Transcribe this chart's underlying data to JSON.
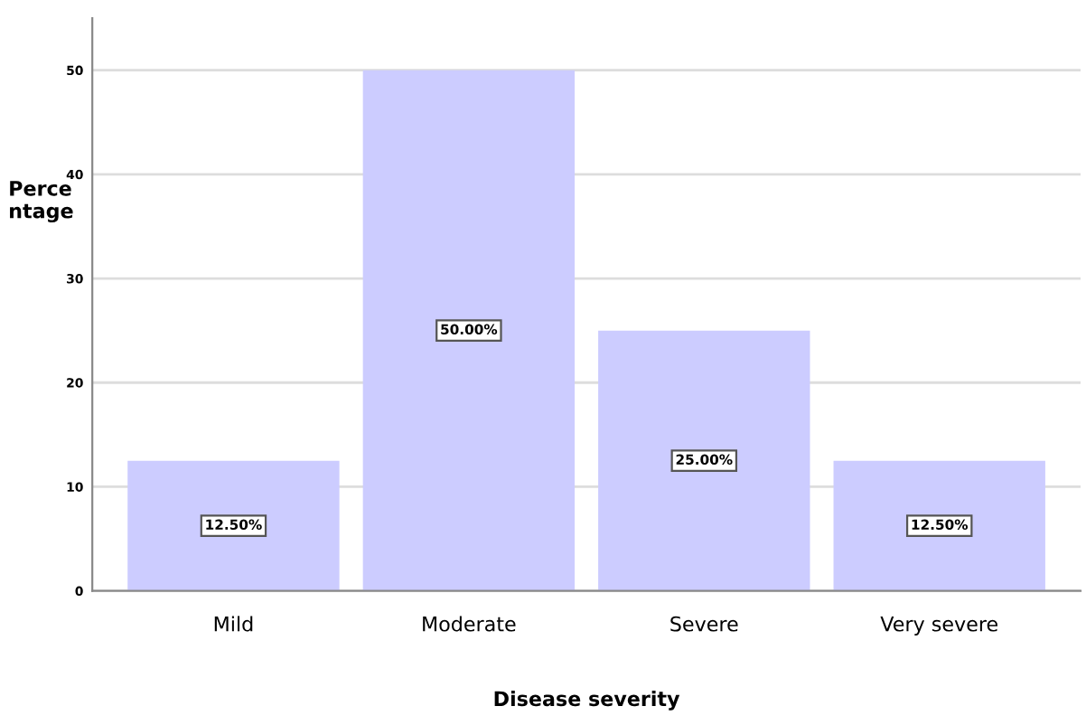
{
  "chart_data": {
    "type": "bar",
    "xlabel": "Disease severity",
    "ylabel": "Perce\nntage",
    "categories": [
      "Mild",
      "Moderate",
      "Severe",
      "Very severe"
    ],
    "values": [
      12.5,
      50,
      25,
      12.5
    ],
    "value_labels": [
      "12.50%",
      "50.00%",
      "25.00%",
      "12.50%"
    ],
    "color": "#ccccff",
    "ylim": [
      0,
      55
    ],
    "yticks": [
      0,
      10,
      20,
      30,
      40,
      50
    ],
    "grid": "y"
  }
}
